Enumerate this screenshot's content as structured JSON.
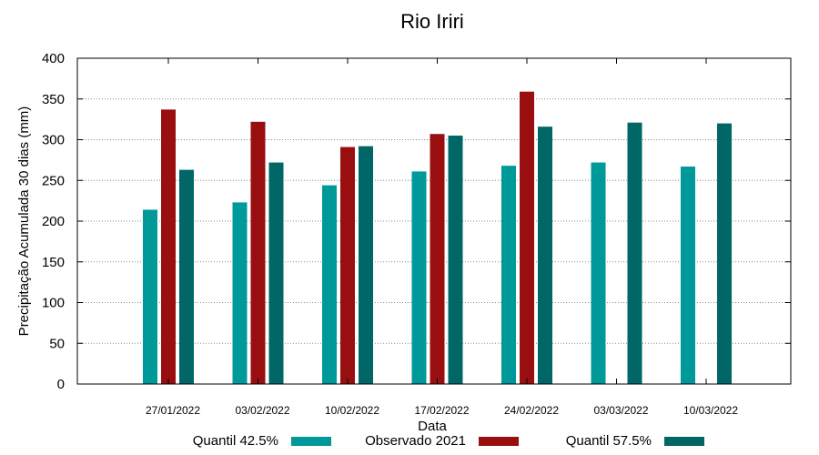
{
  "chart_data": {
    "type": "bar",
    "title": "Rio Iriri",
    "xlabel": "Data",
    "ylabel": "Precipitação Acumulada 30 dias (mm)",
    "categories": [
      "27/01/2022",
      "03/02/2022",
      "10/02/2022",
      "17/02/2022",
      "24/02/2022",
      "03/03/2022",
      "10/03/2022"
    ],
    "ylim": [
      0,
      400
    ],
    "yticks": [
      0,
      50,
      100,
      150,
      200,
      250,
      300,
      350,
      400
    ],
    "grid": true,
    "legend_position": "bottom",
    "series": [
      {
        "name": "Quantil 42.5%",
        "color": "#009999",
        "values": [
          214,
          223,
          244,
          261,
          268,
          272,
          267
        ]
      },
      {
        "name": "Observado 2021",
        "color": "#990f0f",
        "values": [
          337,
          322,
          291,
          307,
          359,
          null,
          null
        ]
      },
      {
        "name": "Quantil 57.5%",
        "color": "#006666",
        "values": [
          263,
          272,
          292,
          305,
          316,
          321,
          320
        ]
      }
    ]
  }
}
